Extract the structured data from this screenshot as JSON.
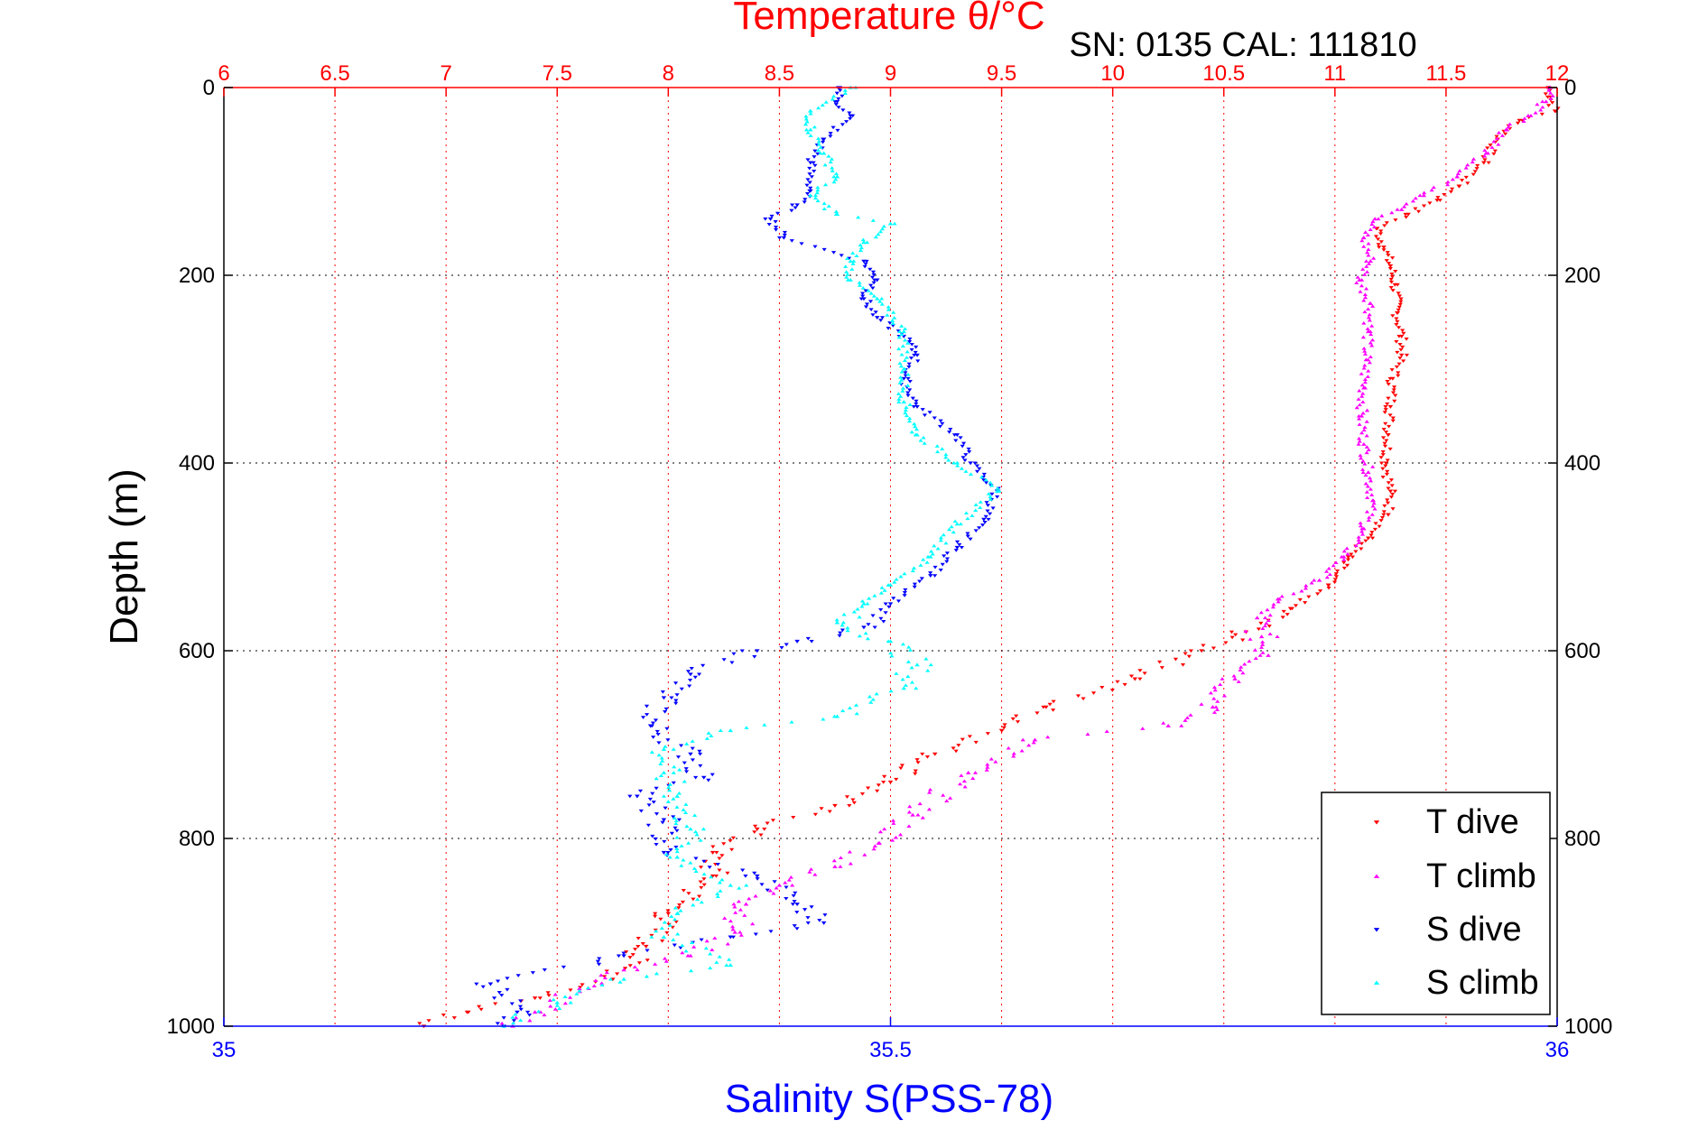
{
  "chart_data": {
    "type": "scatter",
    "title": "Temperature θ/°C",
    "subtitle": "SN: 0135  CAL: 111810",
    "xlabel_bottom": "Salinity S(PSS-78)",
    "ylabel": "Depth (m)",
    "top_axis": {
      "min": 6,
      "max": 12,
      "ticks": [
        "6",
        "6.5",
        "7",
        "7.5",
        "8",
        "8.5",
        "9",
        "9.5",
        "10",
        "10.5",
        "11",
        "11.5",
        "12"
      ]
    },
    "bottom_axis": {
      "min": 35,
      "max": 36,
      "ticks": [
        "35",
        "35.5",
        "36"
      ]
    },
    "depth_axis": {
      "min": 0,
      "max": 1000,
      "reversed": true,
      "ticks": [
        "0",
        "200",
        "400",
        "600",
        "800",
        "1000"
      ]
    },
    "grid": true,
    "legend_position": "bottom-right",
    "colors": {
      "title": "#ff0000",
      "top_axis": "#ff0000",
      "bottom_axis": "#0000ff",
      "axis_default": "#000000"
    },
    "series": [
      {
        "name": "T dive",
        "axis": "top",
        "color": "#ff0000",
        "marker": "triangle-down",
        "points": [
          [
            11.96,
            0
          ],
          [
            11.97,
            10
          ],
          [
            11.99,
            25
          ],
          [
            11.83,
            35
          ],
          [
            11.73,
            55
          ],
          [
            11.67,
            80
          ],
          [
            11.56,
            105
          ],
          [
            11.46,
            120
          ],
          [
            11.33,
            135
          ],
          [
            11.19,
            150
          ],
          [
            11.22,
            170
          ],
          [
            11.25,
            190
          ],
          [
            11.27,
            210
          ],
          [
            11.28,
            240
          ],
          [
            11.3,
            265
          ],
          [
            11.3,
            285
          ],
          [
            11.26,
            310
          ],
          [
            11.25,
            340
          ],
          [
            11.24,
            370
          ],
          [
            11.23,
            400
          ],
          [
            11.25,
            430
          ],
          [
            11.24,
            455
          ],
          [
            11.15,
            480
          ],
          [
            11.06,
            500
          ],
          [
            10.97,
            530
          ],
          [
            10.8,
            555
          ],
          [
            10.6,
            580
          ],
          [
            10.4,
            600
          ],
          [
            10.1,
            630
          ],
          [
            9.7,
            660
          ],
          [
            9.5,
            685
          ],
          [
            9.2,
            710
          ],
          [
            9.0,
            740
          ],
          [
            8.75,
            765
          ],
          [
            8.4,
            790
          ],
          [
            8.2,
            815
          ],
          [
            8.2,
            840
          ],
          [
            8.0,
            880
          ],
          [
            7.9,
            915
          ],
          [
            7.75,
            950
          ],
          [
            7.4,
            970
          ],
          [
            7.1,
            985
          ],
          [
            6.9,
            1000
          ]
        ]
      },
      {
        "name": "T climb",
        "axis": "top",
        "color": "#ff00ff",
        "marker": "triangle-up",
        "points": [
          [
            11.97,
            0
          ],
          [
            11.95,
            15
          ],
          [
            11.87,
            30
          ],
          [
            11.77,
            45
          ],
          [
            11.68,
            70
          ],
          [
            11.55,
            95
          ],
          [
            11.4,
            115
          ],
          [
            11.3,
            130
          ],
          [
            11.18,
            140
          ],
          [
            11.13,
            160
          ],
          [
            11.16,
            185
          ],
          [
            11.11,
            205
          ],
          [
            11.16,
            230
          ],
          [
            11.15,
            260
          ],
          [
            11.14,
            290
          ],
          [
            11.13,
            320
          ],
          [
            11.12,
            350
          ],
          [
            11.13,
            380
          ],
          [
            11.15,
            410
          ],
          [
            11.17,
            440
          ],
          [
            11.13,
            470
          ],
          [
            11.04,
            500
          ],
          [
            10.93,
            525
          ],
          [
            10.75,
            545
          ],
          [
            10.65,
            565
          ],
          [
            10.67,
            585
          ],
          [
            10.7,
            605
          ],
          [
            10.55,
            630
          ],
          [
            10.45,
            660
          ],
          [
            10.25,
            680
          ],
          [
            9.65,
            695
          ],
          [
            9.35,
            730
          ],
          [
            9.1,
            775
          ],
          [
            8.95,
            805
          ],
          [
            8.75,
            830
          ],
          [
            8.5,
            850
          ],
          [
            8.35,
            870
          ],
          [
            8.3,
            900
          ],
          [
            8.1,
            925
          ],
          [
            7.8,
            940
          ],
          [
            7.6,
            960
          ],
          [
            7.4,
            985
          ],
          [
            7.3,
            1000
          ]
        ]
      },
      {
        "name": "S dive",
        "axis": "bottom",
        "color": "#0000ff",
        "marker": "triangle-down",
        "points": [
          [
            35.462,
            0
          ],
          [
            35.46,
            15
          ],
          [
            35.47,
            30
          ],
          [
            35.45,
            55
          ],
          [
            35.44,
            80
          ],
          [
            35.44,
            110
          ],
          [
            35.43,
            125
          ],
          [
            35.41,
            140
          ],
          [
            35.42,
            160
          ],
          [
            35.48,
            185
          ],
          [
            35.49,
            205
          ],
          [
            35.48,
            225
          ],
          [
            35.49,
            245
          ],
          [
            35.51,
            265
          ],
          [
            35.52,
            285
          ],
          [
            35.51,
            310
          ],
          [
            35.52,
            340
          ],
          [
            35.55,
            370
          ],
          [
            35.56,
            400
          ],
          [
            35.58,
            430
          ],
          [
            35.57,
            460
          ],
          [
            35.55,
            490
          ],
          [
            35.53,
            520
          ],
          [
            35.5,
            550
          ],
          [
            35.48,
            575
          ],
          [
            35.43,
            590
          ],
          [
            35.4,
            600
          ],
          [
            35.35,
            625
          ],
          [
            35.33,
            650
          ],
          [
            35.32,
            680
          ],
          [
            35.35,
            710
          ],
          [
            35.36,
            735
          ],
          [
            35.31,
            755
          ],
          [
            35.33,
            780
          ],
          [
            35.33,
            815
          ],
          [
            35.4,
            840
          ],
          [
            35.43,
            870
          ],
          [
            35.45,
            890
          ],
          [
            35.38,
            905
          ],
          [
            35.3,
            925
          ],
          [
            35.2,
            955
          ],
          [
            35.22,
            985
          ],
          [
            35.21,
            1000
          ]
        ]
      },
      {
        "name": "S climb",
        "axis": "bottom",
        "color": "#00ffff",
        "marker": "triangle-up",
        "points": [
          [
            35.47,
            0
          ],
          [
            35.44,
            25
          ],
          [
            35.44,
            45
          ],
          [
            35.45,
            70
          ],
          [
            35.46,
            95
          ],
          [
            35.44,
            115
          ],
          [
            35.46,
            135
          ],
          [
            35.5,
            145
          ],
          [
            35.48,
            165
          ],
          [
            35.47,
            185
          ],
          [
            35.47,
            205
          ],
          [
            35.49,
            225
          ],
          [
            35.51,
            260
          ],
          [
            35.51,
            300
          ],
          [
            35.51,
            335
          ],
          [
            35.52,
            370
          ],
          [
            35.55,
            400
          ],
          [
            35.58,
            430
          ],
          [
            35.55,
            465
          ],
          [
            35.53,
            500
          ],
          [
            35.5,
            530
          ],
          [
            35.48,
            550
          ],
          [
            35.46,
            570
          ],
          [
            35.5,
            590
          ],
          [
            35.52,
            615
          ],
          [
            35.51,
            640
          ],
          [
            35.46,
            670
          ],
          [
            35.38,
            685
          ],
          [
            35.33,
            705
          ],
          [
            35.33,
            730
          ],
          [
            35.34,
            755
          ],
          [
            35.35,
            790
          ],
          [
            35.34,
            820
          ],
          [
            35.38,
            850
          ],
          [
            35.34,
            880
          ],
          [
            35.33,
            905
          ],
          [
            35.38,
            935
          ],
          [
            35.3,
            950
          ],
          [
            35.25,
            975
          ],
          [
            35.21,
            1000
          ]
        ]
      }
    ]
  }
}
